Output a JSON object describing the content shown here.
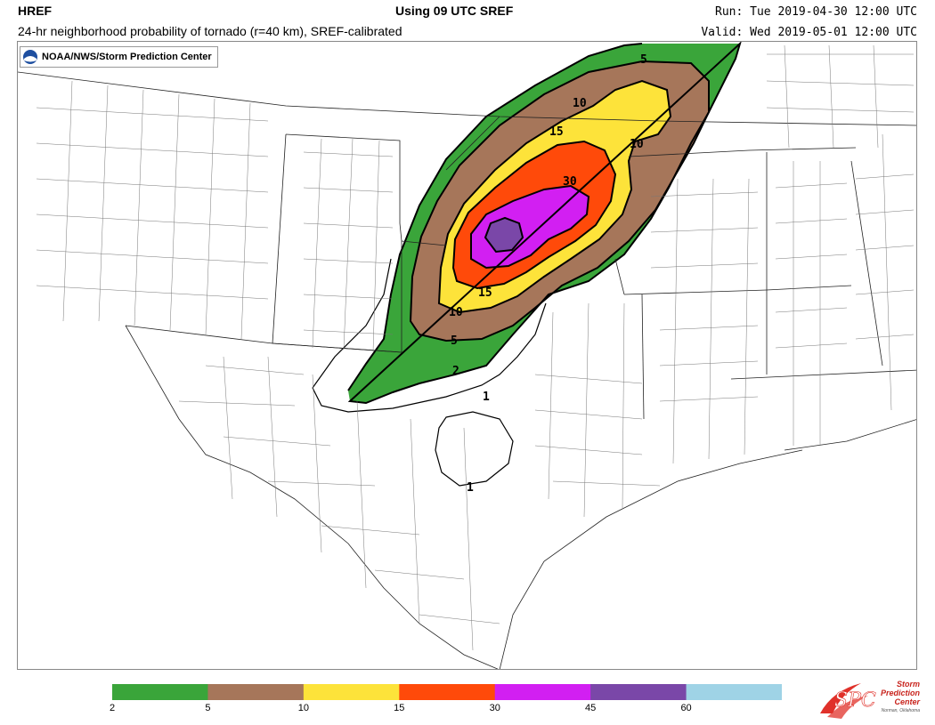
{
  "header": {
    "model": "HREF",
    "using": "Using 09 UTC SREF",
    "run": "Run: Tue 2019-04-30 12:00 UTC",
    "description": "24-hr neighborhood probability of tornado (r=40 km), SREF-calibrated",
    "valid": "Valid: Wed 2019-05-01 12:00 UTC"
  },
  "badge": {
    "text": "NOAA/NWS/Storm Prediction Center",
    "icon": "noaa-logo-icon"
  },
  "contour_labels": [
    "5",
    "10",
    "10",
    "15",
    "30",
    "15",
    "10",
    "5",
    "2",
    "1",
    "1"
  ],
  "legend": {
    "bins": [
      {
        "from": 2,
        "to": 5,
        "color": "#3aa53a"
      },
      {
        "from": 5,
        "to": 10,
        "color": "#a6765a"
      },
      {
        "from": 10,
        "to": 15,
        "color": "#fde33a"
      },
      {
        "from": 15,
        "to": 30,
        "color": "#ff4a0a"
      },
      {
        "from": 30,
        "to": 45,
        "color": "#d21ff2"
      },
      {
        "from": 45,
        "to": 60,
        "color": "#7a47a8"
      },
      {
        "from": 60,
        "to": null,
        "color": "#9fd3e6"
      }
    ],
    "tick_labels": [
      "2",
      "5",
      "10",
      "15",
      "30",
      "45",
      "60"
    ]
  },
  "logo": {
    "lines": [
      "Storm",
      "Prediction",
      "Center",
      "Norman, Oklahoma"
    ],
    "mark": "SPC"
  }
}
